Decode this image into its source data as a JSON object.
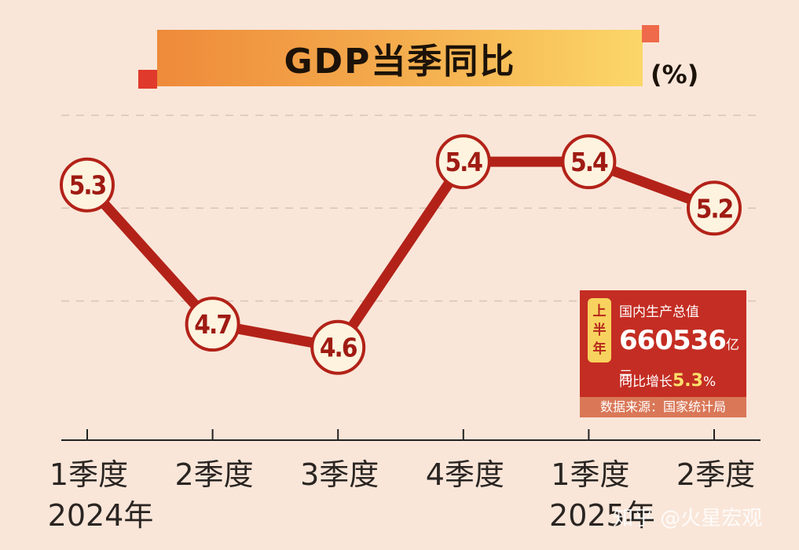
{
  "title": "GDP当季同比",
  "unit": "(%)",
  "colors": {
    "background": "#f9e6d9",
    "line": "#b32218",
    "marker_fill": "#fdf3df",
    "marker_stroke": "#b32218",
    "grid": "#d9c3b5",
    "info_box": "#c42d23",
    "badge": "#f8d25e"
  },
  "chart_data": {
    "type": "line",
    "title": "GDP当季同比",
    "ylabel": "(%)",
    "categories": [
      "1季度",
      "2季度",
      "3季度",
      "4季度",
      "1季度",
      "2季度"
    ],
    "year_labels": [
      {
        "category_index": 0,
        "label": "2024年"
      },
      {
        "category_index": 4,
        "label": "2025年"
      }
    ],
    "series": [
      {
        "values": [
          5.3,
          4.7,
          4.6,
          5.4,
          5.4,
          5.2
        ]
      }
    ],
    "data_labels": [
      "5.3",
      "4.7",
      "4.6",
      "5.4",
      "5.4",
      "5.2"
    ],
    "ylim": [
      4.2,
      5.6
    ],
    "grid": true
  },
  "info_box": {
    "badge_chars": [
      "上",
      "半",
      "年"
    ],
    "title": "国内生产总值",
    "value": "660536",
    "value_unit": "亿元",
    "growth_label": "同比增长",
    "growth_value": "5.3",
    "growth_unit": "%",
    "source": "数据来源：国家统计局"
  },
  "watermark": "知乎 @火星宏观"
}
